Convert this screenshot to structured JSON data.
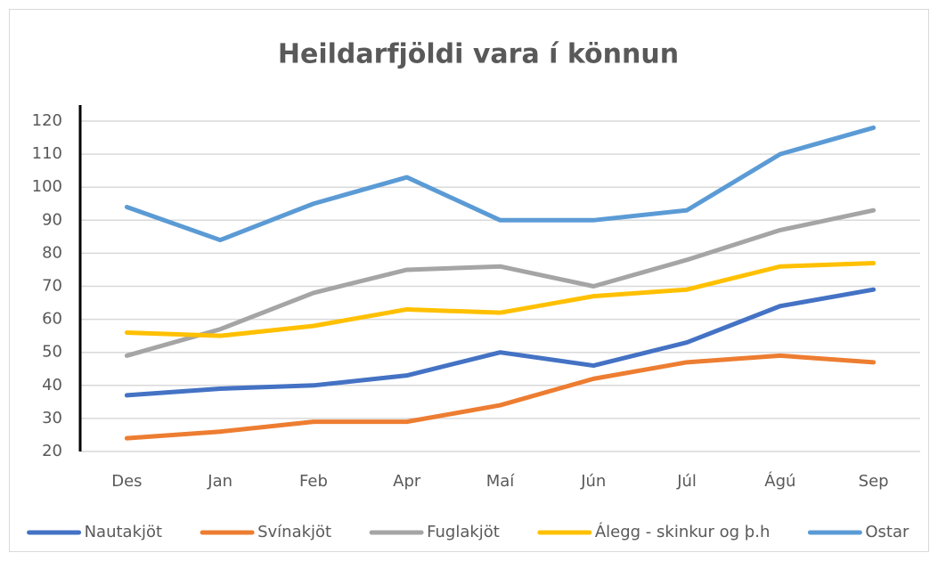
{
  "chart_data": {
    "type": "line",
    "title": "Heildarfjöldi vara í könnun",
    "categories": [
      "Des",
      "Jan",
      "Feb",
      "Apr",
      "Maí",
      "Jún",
      "Júl",
      "Ágú",
      "Sep"
    ],
    "series": [
      {
        "name": "Nautakjöt",
        "color": "#4472c4",
        "values": [
          37,
          39,
          40,
          43,
          50,
          46,
          53,
          64,
          69
        ]
      },
      {
        "name": "Svínakjöt",
        "color": "#ed7d31",
        "values": [
          24,
          26,
          29,
          29,
          34,
          42,
          47,
          49,
          47
        ]
      },
      {
        "name": "Fuglakjöt",
        "color": "#a5a5a5",
        "values": [
          49,
          57,
          68,
          75,
          76,
          70,
          78,
          87,
          93
        ]
      },
      {
        "name": "Álegg - skinkur og þ.h",
        "color": "#ffc000",
        "values": [
          56,
          55,
          58,
          63,
          62,
          67,
          69,
          76,
          77
        ]
      },
      {
        "name": "Ostar",
        "color": "#5b9bd5",
        "values": [
          94,
          84,
          95,
          103,
          90,
          90,
          93,
          110,
          118
        ]
      }
    ],
    "ylim": [
      20,
      120
    ],
    "yticks": [
      20,
      30,
      40,
      50,
      60,
      70,
      80,
      90,
      100,
      110,
      120
    ],
    "grid": true,
    "legend": "bottom"
  }
}
